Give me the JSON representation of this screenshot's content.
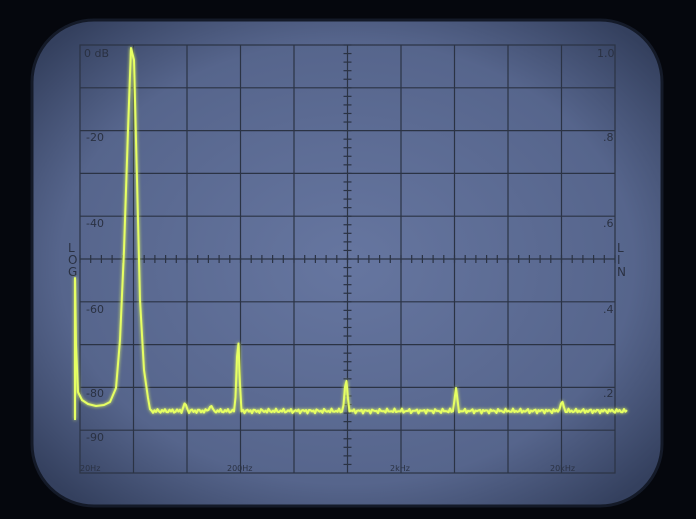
{
  "screen": {
    "background_color": "#5f6f98",
    "bezel_color": "#0a0d14",
    "graticule_color": "#2b3344",
    "trace_color": "#e6ff63",
    "glow_color": "#c8ff3a"
  },
  "labels": {
    "db_top": "0 dB",
    "db_20": "-20",
    "db_40": "-40",
    "db_60": "-60",
    "db_80": "-80",
    "db_90": "-90",
    "lin_top": "1.0",
    "lin_8": ".8",
    "lin_6": ".6",
    "lin_4": ".4",
    "lin_2": ".2",
    "log_side": "LOG",
    "lin_side": "LIN",
    "freq_20hz": "20Hz",
    "freq_200hz": "200Hz",
    "freq_2khz": "2kHz",
    "freq_20khz": "20kHz"
  }
}
